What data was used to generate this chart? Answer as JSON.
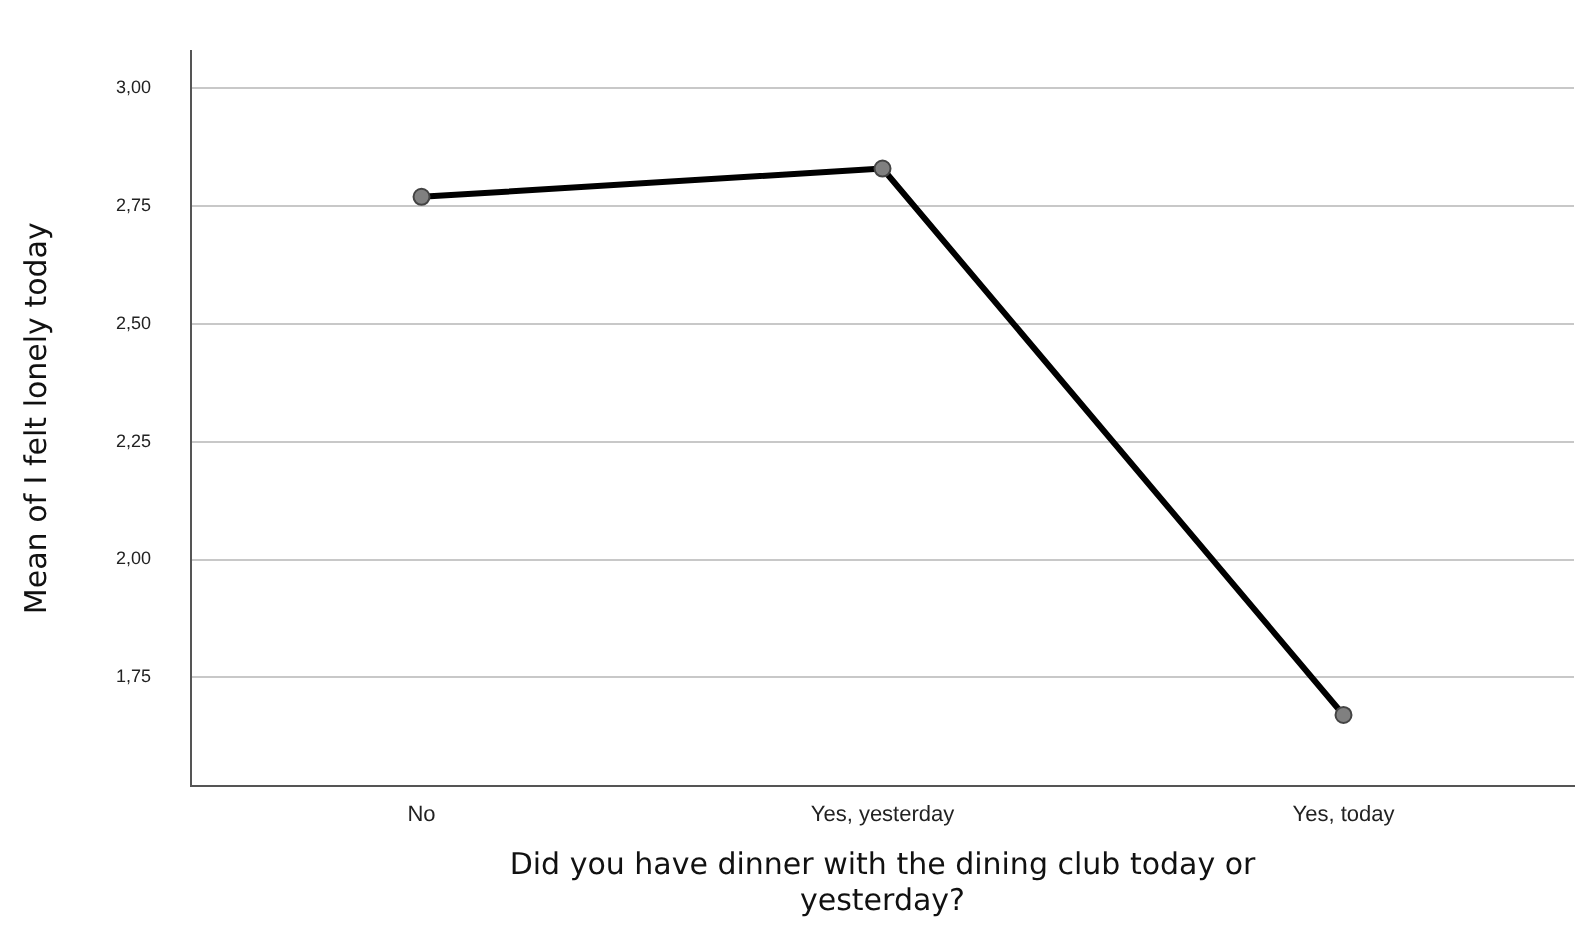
{
  "chart_data": {
    "type": "line",
    "xlabel": "Did you have dinner with the dining club today or yesterday?",
    "ylabel": "Mean of I felt lonely today",
    "categories": [
      "No",
      "Yes, yesterday",
      "Yes, today"
    ],
    "series": [
      {
        "color": "#000000",
        "values": [
          2.77,
          2.83,
          1.67
        ]
      }
    ],
    "ylim": [
      1.52,
      3.08
    ],
    "yticks": [
      {
        "value": 1.75,
        "label": "1,75"
      },
      {
        "value": 2,
        "label": "2,00"
      },
      {
        "value": 2.25,
        "label": "2,25"
      },
      {
        "value": 2.5,
        "label": "2,50"
      },
      {
        "value": 2.75,
        "label": "2,75"
      },
      {
        "value": 3,
        "label": "3,00"
      }
    ],
    "grid": "y",
    "legend": false,
    "marker": "circle",
    "line_style": "solid"
  }
}
